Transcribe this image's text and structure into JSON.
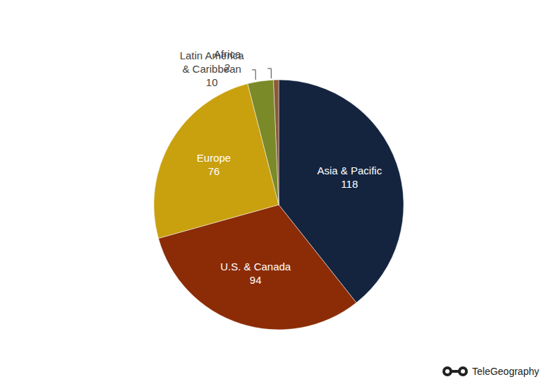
{
  "chart_data": {
    "type": "pie",
    "categories": [
      "Asia & Pacific",
      "U.S. & Canada",
      "Europe",
      "Latin America & Caribbean",
      "Africa"
    ],
    "values": [
      118,
      94,
      76,
      10,
      2
    ],
    "colors": [
      "#14243f",
      "#8b2c06",
      "#c9a00e",
      "#7b8a28",
      "#8a5a3a"
    ],
    "data_labels": true,
    "annotations": [
      "TeleGeography"
    ]
  }
}
